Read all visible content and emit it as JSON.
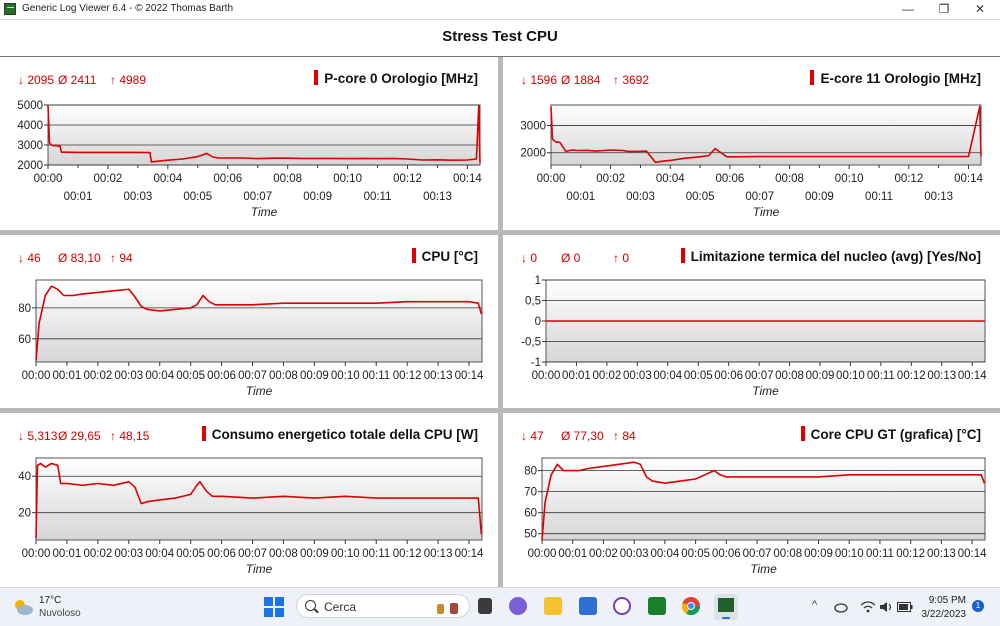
{
  "window": {
    "title": "Generic Log Viewer 6.4 - © 2022 Thomas Barth",
    "minimize": "—",
    "maximize": "❐",
    "close": "✕"
  },
  "header": {
    "title": "Stress Test CPU"
  },
  "colors": {
    "series": "#dd0000",
    "accent": "#e00000"
  },
  "chart_data": [
    {
      "type": "line",
      "title": "P-core 0 Orologio [MHz]",
      "stats": {
        "min": "↓ 2095",
        "avg": "Ø 2411",
        "max": "↑ 4989"
      },
      "xlabel": "Time",
      "x_ticks_row1": [
        "00:00",
        "00:02",
        "00:04",
        "00:06",
        "00:08",
        "00:10",
        "00:12",
        "00:14"
      ],
      "x_ticks_row2": [
        "00:01",
        "00:03",
        "00:05",
        "00:07",
        "00:09",
        "00:11",
        "00:13"
      ],
      "yticks": [
        "2000",
        "3000",
        "4000",
        "5000"
      ],
      "ylim": [
        2000,
        5000
      ],
      "grid": true,
      "legend": "top-right",
      "series": [
        {
          "x": [
            0,
            0.05,
            0.1,
            0.15,
            0.3,
            0.4,
            0.45,
            0.6,
            1,
            1.5,
            2,
            2.5,
            3,
            3.4,
            3.45,
            3.6,
            4,
            4.5,
            5,
            5.3,
            5.5,
            5.7,
            6,
            6.5,
            7,
            7.5,
            8,
            8.5,
            9,
            9.5,
            10,
            10.5,
            11,
            11.5,
            12,
            12.5,
            13,
            13.5,
            14,
            14.3,
            14.38,
            14.42
          ],
          "y": [
            4989,
            3100,
            3020,
            2980,
            2960,
            2940,
            2640,
            2640,
            2630,
            2630,
            2630,
            2630,
            2630,
            2620,
            2150,
            2180,
            2240,
            2300,
            2420,
            2580,
            2400,
            2350,
            2350,
            2350,
            2320,
            2340,
            2340,
            2330,
            2330,
            2330,
            2320,
            2330,
            2320,
            2330,
            2300,
            2250,
            2260,
            2240,
            2250,
            2300,
            4989,
            2100
          ]
        }
      ]
    },
    {
      "type": "line",
      "title": "E-core 11 Orologio [MHz]",
      "stats": {
        "min": "↓ 1596",
        "avg": "Ø 1884",
        "max": "↑ 3692"
      },
      "xlabel": "Time",
      "x_ticks_row1": [
        "00:00",
        "00:02",
        "00:04",
        "00:06",
        "00:08",
        "00:10",
        "00:12",
        "00:14"
      ],
      "x_ticks_row2": [
        "00:01",
        "00:03",
        "00:05",
        "00:07",
        "00:09",
        "00:11",
        "00:13"
      ],
      "yticks": [
        "2000",
        "3000"
      ],
      "ylim": [
        1550,
        3750
      ],
      "grid": true,
      "legend": "top-right",
      "series": [
        {
          "x": [
            0,
            0.05,
            0.15,
            0.3,
            0.5,
            0.7,
            0.9,
            1.2,
            1.5,
            2,
            2.4,
            2.6,
            2.9,
            3.2,
            3.5,
            3.8,
            4,
            4.5,
            5,
            5.3,
            5.5,
            5.7,
            5.9,
            6.2,
            7,
            8,
            9,
            10,
            11,
            12,
            13,
            14,
            14.38,
            14.42
          ],
          "y": [
            3692,
            2500,
            2400,
            2380,
            2050,
            2100,
            2080,
            2090,
            2060,
            2100,
            2080,
            2050,
            2050,
            2060,
            1650,
            1700,
            1720,
            1800,
            1850,
            1900,
            2150,
            2000,
            1850,
            1850,
            1860,
            1860,
            1860,
            1860,
            1860,
            1860,
            1860,
            1860,
            3692,
            1860
          ]
        }
      ]
    },
    {
      "type": "line",
      "title": "CPU [°C]",
      "stats": {
        "min": "↓ 46",
        "avg": "Ø 83,10",
        "max": "↑ 94"
      },
      "xlabel": "Time",
      "x_ticks": [
        "00:00",
        "00:01",
        "00:02",
        "00:03",
        "00:04",
        "00:05",
        "00:06",
        "00:07",
        "00:08",
        "00:09",
        "00:10",
        "00:11",
        "00:12",
        "00:13",
        "00:14"
      ],
      "yticks": [
        "60",
        "80"
      ],
      "ylim": [
        45,
        98
      ],
      "grid": true,
      "legend": "top-right",
      "series": [
        {
          "x": [
            0,
            0.1,
            0.3,
            0.5,
            0.7,
            0.9,
            1.2,
            1.5,
            2,
            2.5,
            3,
            3.2,
            3.4,
            3.6,
            4,
            4.5,
            5,
            5.2,
            5.4,
            5.6,
            5.8,
            6,
            7,
            8,
            9,
            10,
            11,
            12,
            13,
            14,
            14.3,
            14.4
          ],
          "y": [
            46,
            70,
            88,
            94,
            92,
            88,
            88,
            89,
            90,
            91,
            92,
            87,
            81,
            79,
            78,
            79,
            80,
            82,
            88,
            84,
            82,
            82,
            82,
            83,
            83,
            83,
            83,
            84,
            84,
            84,
            83,
            76
          ]
        }
      ]
    },
    {
      "type": "line",
      "title": "Limitazione termica del nucleo (avg) [Yes/No]",
      "stats": {
        "min": "↓ 0",
        "avg": "Ø 0",
        "max": "↑ 0"
      },
      "xlabel": "Time",
      "x_ticks": [
        "00:00",
        "00:01",
        "00:02",
        "00:03",
        "00:04",
        "00:05",
        "00:06",
        "00:07",
        "00:08",
        "00:09",
        "00:10",
        "00:11",
        "00:12",
        "00:13",
        "00:14"
      ],
      "yticks": [
        "-1",
        "-0,5",
        "0",
        "0,5",
        "1"
      ],
      "ylim": [
        -1,
        1
      ],
      "grid": true,
      "legend": "top-right",
      "series": [
        {
          "x": [
            0,
            14.4
          ],
          "y": [
            0,
            0
          ]
        }
      ]
    },
    {
      "type": "line",
      "title": "Consumo energetico totale della CPU [W]",
      "stats": {
        "min": "↓ 5,313",
        "avg": "Ø 29,65",
        "max": "↑ 48,15"
      },
      "xlabel": "Time",
      "x_ticks": [
        "00:00",
        "00:01",
        "00:02",
        "00:03",
        "00:04",
        "00:05",
        "00:06",
        "00:07",
        "00:08",
        "00:09",
        "00:10",
        "00:11",
        "00:12",
        "00:13",
        "00:14"
      ],
      "yticks": [
        "20",
        "40"
      ],
      "ylim": [
        5,
        50
      ],
      "grid": true,
      "legend": "top-right",
      "series": [
        {
          "x": [
            0,
            0.05,
            0.15,
            0.3,
            0.5,
            0.7,
            0.8,
            1,
            1.5,
            2,
            2.5,
            3,
            3.2,
            3.4,
            3.6,
            4,
            4.5,
            5,
            5.2,
            5.3,
            5.5,
            5.7,
            6,
            7,
            8,
            9,
            10,
            11,
            12,
            13,
            14,
            14.3,
            14.4
          ],
          "y": [
            6,
            46,
            47,
            45,
            47,
            46,
            36,
            36,
            35,
            36,
            35,
            37,
            34,
            25,
            26,
            27,
            28,
            30,
            35,
            37,
            32,
            29,
            29,
            28,
            29,
            28,
            29,
            28,
            28,
            28,
            28,
            28,
            8
          ]
        }
      ]
    },
    {
      "type": "line",
      "title": "Core CPU GT (grafica) [°C]",
      "stats": {
        "min": "↓ 47",
        "avg": "Ø 77,30",
        "max": "↑ 84"
      },
      "xlabel": "Time",
      "x_ticks": [
        "00:00",
        "00:01",
        "00:02",
        "00:03",
        "00:04",
        "00:05",
        "00:06",
        "00:07",
        "00:08",
        "00:09",
        "00:10",
        "00:11",
        "00:12",
        "00:13",
        "00:14"
      ],
      "yticks": [
        "50",
        "60",
        "70",
        "80"
      ],
      "ylim": [
        47,
        86
      ],
      "grid": true,
      "legend": "top-right",
      "series": [
        {
          "x": [
            0,
            0.1,
            0.3,
            0.5,
            0.7,
            0.9,
            1.2,
            1.5,
            2,
            2.5,
            3,
            3.2,
            3.4,
            3.6,
            4,
            4.5,
            5,
            5.3,
            5.6,
            5.8,
            6,
            7,
            8,
            9,
            10,
            11,
            12,
            13,
            14,
            14.3,
            14.4
          ],
          "y": [
            47,
            65,
            78,
            83,
            80,
            80,
            80,
            81,
            82,
            83,
            84,
            83,
            77,
            75,
            74,
            75,
            76,
            78,
            80,
            78,
            77,
            77,
            77,
            77,
            78,
            78,
            78,
            78,
            78,
            78,
            74
          ]
        }
      ]
    }
  ],
  "taskbar": {
    "weather_temp": "17°C",
    "weather_desc": "Nuvoloso",
    "search_placeholder": "Cerca",
    "time": "9:05 PM",
    "date": "3/22/2023",
    "notifications": "1",
    "tray_chevron": "^"
  }
}
